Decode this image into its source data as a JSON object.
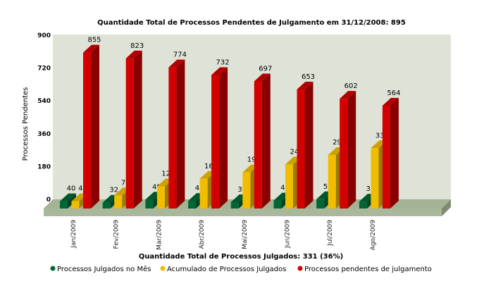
{
  "chart_data": {
    "type": "bar",
    "title": "Quantidade Total de Processos Pendentes de Julgamento em 31/12/2008: 895",
    "xlabel": "Quantidade Total de Processos Julgados: 331 (36%)",
    "ylabel": "Processos Pendentes",
    "ylim": [
      0,
      900
    ],
    "yticks": [
      "0",
      "180",
      "360",
      "540",
      "720",
      "900"
    ],
    "categories": [
      "Jan/2009",
      "Fev/2009",
      "Mar/2009",
      "Abr/2009",
      "Mai/2009",
      "Jun/2009",
      "Jul/2009",
      "Ago/2009"
    ],
    "series": [
      {
        "name": "Processos Julgados no Mês",
        "color": "#006633",
        "values": [
          40,
          32,
          49,
          42,
          35,
          44,
          51,
          38
        ]
      },
      {
        "name": "Acumulado de Processos Julgados",
        "color": "#f2bd00",
        "values": [
          40,
          72,
          121,
          163,
          198,
          242,
          293,
          331
        ]
      },
      {
        "name": "Processos pendentes de julgamento",
        "color": "#d20000",
        "values": [
          855,
          823,
          774,
          732,
          697,
          653,
          602,
          564
        ]
      }
    ],
    "style": "3d",
    "grid": false,
    "legend": "bottom"
  }
}
